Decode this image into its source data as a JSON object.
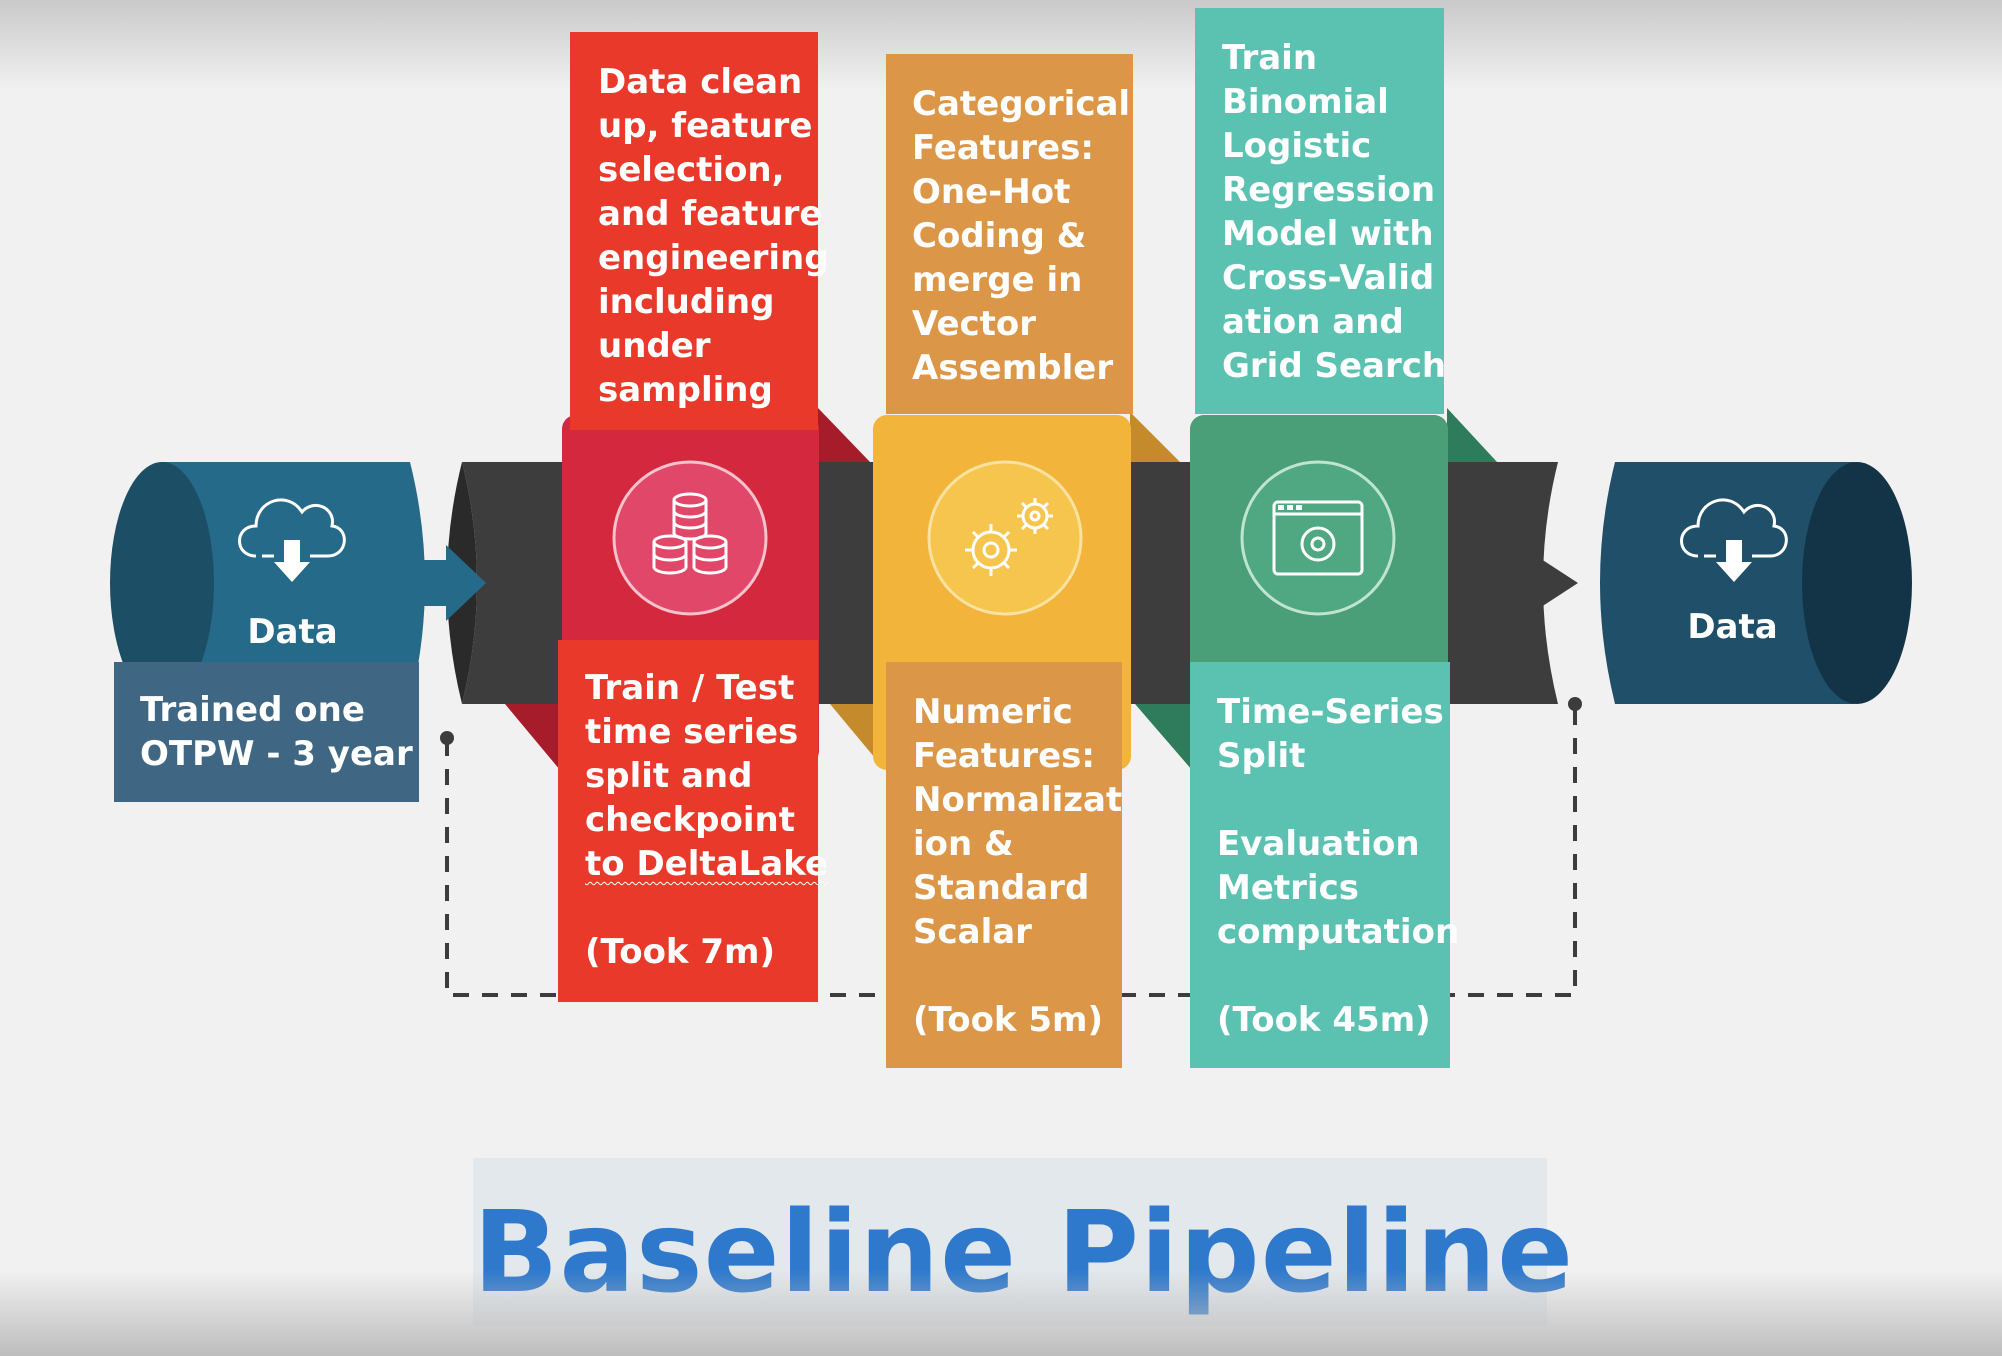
{
  "title": "Baseline Pipeline",
  "source": {
    "label": "Data",
    "caption_lines": [
      "Trained one",
      "OTPW - 3 year"
    ],
    "icon": "cloud-download-icon"
  },
  "sink": {
    "label": "Data",
    "icon": "cloud-download-icon"
  },
  "stages": [
    {
      "icon": "database-icon",
      "color": "#e8392b",
      "band_color": "#d3283d",
      "top_lines": [
        "Data clean",
        "up, feature",
        "selection,",
        "and feature",
        "engineering",
        "including",
        "under",
        "sampling"
      ],
      "bottom_lines": [
        "Train / Test",
        "time series",
        "split and",
        "checkpoint",
        "to DeltaLake",
        "",
        "(Took 7m)"
      ]
    },
    {
      "icon": "gears-icon",
      "color": "#dc9647",
      "band_color": "#f2b43b",
      "top_lines": [
        "Categorical",
        "Features:",
        "One-Hot",
        "Coding &",
        "merge in",
        "Vector",
        "Assembler"
      ],
      "bottom_lines": [
        "Numeric",
        "Features:",
        "Normalizat",
        "ion &",
        "Standard",
        "Scalar",
        "",
        "(Took 5m)"
      ]
    },
    {
      "icon": "browser-settings-icon",
      "color": "#5bc2b2",
      "band_color": "#4a9e78",
      "top_lines": [
        "Train",
        "Binomial",
        "Logistic",
        "Regression",
        "Model with",
        "Cross-Valid",
        "ation and",
        "Grid Search"
      ],
      "bottom_lines": [
        "Time-Series",
        "Split",
        "",
        "Evaluation",
        "Metrics",
        "computation",
        "",
        "(Took 45m)"
      ]
    }
  ],
  "colors": {
    "source_cylinder": "#266a8a",
    "sink_cylinder": "#1f4f69",
    "caption_box": "#3f6682",
    "pipe": "#3d3d3d",
    "title_text": "#2f79cc",
    "title_box": "#e3e8ec"
  }
}
